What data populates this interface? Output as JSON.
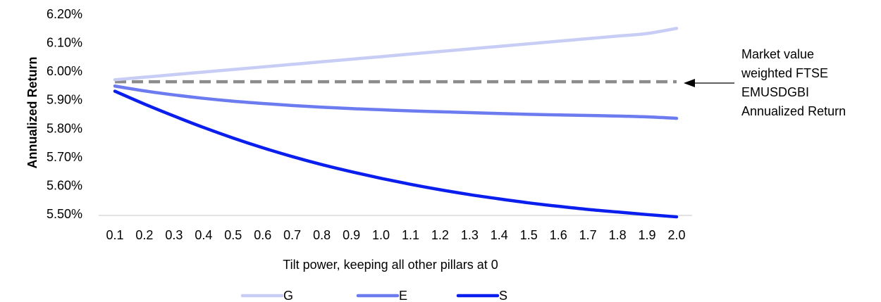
{
  "chart_data": {
    "type": "line",
    "title": "",
    "xlabel": "Tilt power, keeping all other pillars at 0",
    "ylabel": "Annualized Return",
    "x": [
      0.1,
      0.2,
      0.3,
      0.4,
      0.5,
      0.6,
      0.7,
      0.8,
      0.9,
      1.0,
      1.1,
      1.2,
      1.3,
      1.4,
      1.5,
      1.6,
      1.7,
      1.8,
      1.9,
      2.0
    ],
    "x_tick_labels": [
      "0.1",
      "0.2",
      "0.3",
      "0.4",
      "0.5",
      "0.6",
      "0.7",
      "0.8",
      "0.9",
      "1.0",
      "1.1",
      "1.2",
      "1.3",
      "1.4",
      "1.5",
      "1.6",
      "1.7",
      "1.8",
      "1.9",
      "2.0"
    ],
    "ylim": [
      5.5,
      6.2
    ],
    "y_ticks": [
      5.5,
      5.6,
      5.7,
      5.8,
      5.9,
      6.0,
      6.1,
      6.2
    ],
    "y_tick_labels": [
      "5.50%",
      "5.60%",
      "5.70%",
      "5.80%",
      "5.90%",
      "6.00%",
      "6.10%",
      "6.20%"
    ],
    "grid": false,
    "legend_position": "bottom",
    "series": [
      {
        "name": "G",
        "color": "#c8cdf5",
        "style": "solid",
        "values": [
          5.97,
          5.979,
          5.988,
          5.997,
          6.006,
          6.015,
          6.024,
          6.033,
          6.042,
          6.051,
          6.06,
          6.069,
          6.078,
          6.087,
          6.096,
          6.105,
          6.114,
          6.123,
          6.132,
          6.15
        ]
      },
      {
        "name": "E",
        "color": "#6c7bf0",
        "style": "solid",
        "values": [
          5.948,
          5.931,
          5.917,
          5.905,
          5.895,
          5.887,
          5.88,
          5.874,
          5.869,
          5.865,
          5.861,
          5.858,
          5.855,
          5.852,
          5.849,
          5.847,
          5.845,
          5.843,
          5.84,
          5.835
        ]
      },
      {
        "name": "S",
        "color": "#0a1eee",
        "style": "solid",
        "values": [
          5.93,
          5.885,
          5.843,
          5.803,
          5.766,
          5.732,
          5.701,
          5.673,
          5.648,
          5.625,
          5.604,
          5.585,
          5.568,
          5.553,
          5.539,
          5.527,
          5.516,
          5.507,
          5.498,
          5.49
        ]
      }
    ],
    "reference_line": {
      "value": 5.963,
      "color": "#8c8c8c",
      "style": "dashed"
    },
    "annotation": {
      "lines": [
        "Market value",
        "weighted FTSE",
        "EMUSDGBI",
        "Annualized Return"
      ],
      "arrow": true
    }
  }
}
